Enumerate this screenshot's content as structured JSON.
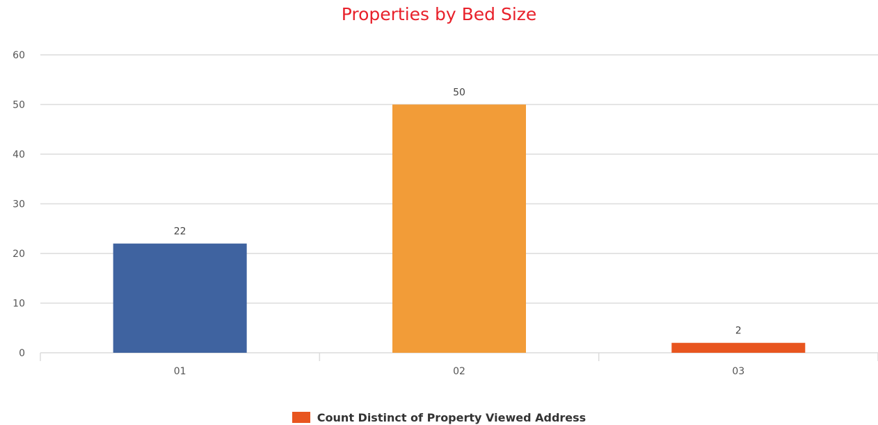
{
  "chart_data": {
    "type": "bar",
    "title": "Properties by Bed Size",
    "xlabel": "",
    "ylabel": "",
    "categories": [
      "01",
      "02",
      "03"
    ],
    "values": [
      22,
      50,
      2
    ],
    "data_labels": [
      "22",
      "50",
      "2"
    ],
    "bar_colors": [
      "#3f63a0",
      "#f29c38",
      "#e8551f"
    ],
    "ylim": [
      0,
      60
    ],
    "yticks": [
      0,
      10,
      20,
      30,
      40,
      50,
      60
    ],
    "grid": true,
    "legend": {
      "position": "bottom",
      "entries": [
        {
          "label": "Count Distinct of Property Viewed Address",
          "color": "#e8551f"
        }
      ]
    }
  },
  "colors": {
    "title": "#e8202a",
    "grid": "#dcdcdc",
    "axis_text": "#555555",
    "label_text": "#444444"
  }
}
